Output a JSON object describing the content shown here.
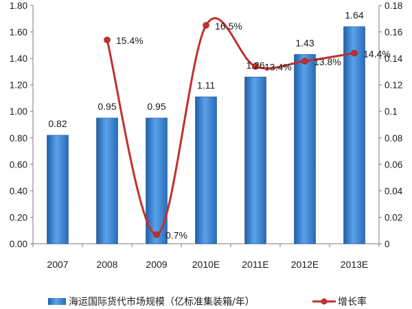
{
  "chart_data": {
    "type": "bar",
    "categories": [
      "2007",
      "2008",
      "2009",
      "2010E",
      "2011E",
      "2012E",
      "2013E"
    ],
    "series": [
      {
        "name": "海运国际货代市场规模（亿标准集装箱/年）",
        "type": "bar",
        "axis": "left",
        "values": [
          0.82,
          0.95,
          0.95,
          1.11,
          1.26,
          1.43,
          1.64
        ],
        "labels": [
          "0.82",
          "0.95",
          "0.95",
          "1.11",
          "1.26",
          "1.43",
          "1.64"
        ],
        "color": "#3a7fd0"
      },
      {
        "name": "增长率",
        "type": "line",
        "axis": "right",
        "values": [
          null,
          0.154,
          0.007,
          0.165,
          0.134,
          0.138,
          0.144
        ],
        "labels": [
          "",
          "15.4%",
          "0.7%",
          "16.5%",
          "13.4%",
          "13.8%",
          "14.4%"
        ],
        "color": "#c0302d"
      }
    ],
    "y_left": {
      "ylim": [
        0,
        1.8
      ],
      "ticks": [
        "0.00",
        "0.20",
        "0.40",
        "0.60",
        "0.80",
        "1.00",
        "1.20",
        "1.40",
        "1.60",
        "1.80"
      ]
    },
    "y_right": {
      "ylim": [
        0,
        0.18
      ],
      "ticks": [
        "0",
        "0.02",
        "0.04",
        "0.06",
        "0.08",
        "0.1",
        "0.12",
        "0.14",
        "0.16",
        "0.18"
      ]
    },
    "grid": false,
    "legend": "bottom"
  }
}
